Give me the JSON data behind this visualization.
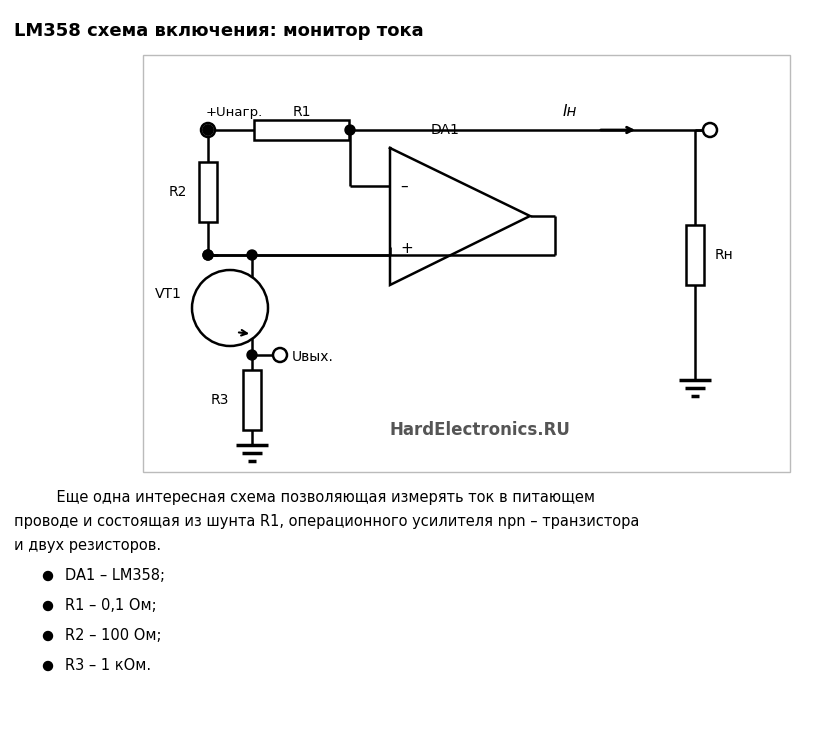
{
  "title": "LM358 схема включения: монитор тока",
  "background_color": "#ffffff",
  "watermark": "HardElectronics.RU",
  "body_line1": "    Еще одна интересная схема позволяющая измерять ток в питающем",
  "body_line2": "проводе и состоящая из шунта R1, операционного усилителя npn – транзистора",
  "body_line3": "и двух резисторов.",
  "bullet_items": [
    "DA1 – LM358;",
    "R1 – 0,1 Ом;",
    "R2 – 100 Ом;",
    "R3 – 1 кОм."
  ],
  "lbl_Unapr": "+Uнагр.",
  "lbl_R1": "R1",
  "lbl_R2": "R2",
  "lbl_R3": "R3",
  "lbl_Ih": "Iн",
  "lbl_Rh": "Rн",
  "lbl_DA1": "DA1",
  "lbl_VT1": "VT1",
  "lbl_Uvyx": "Uвых."
}
